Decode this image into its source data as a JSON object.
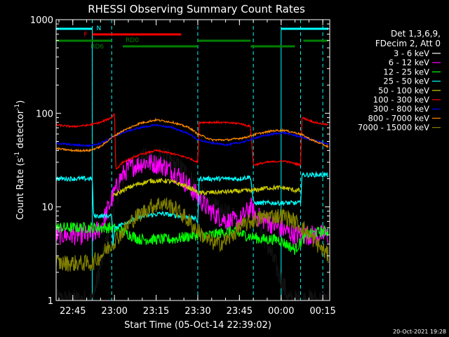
{
  "chart_data": {
    "type": "line",
    "title": "RHESSI Observing Summary Count Rates",
    "xlabel": "Start Time (05-Oct-14 22:39:02)",
    "ylabel_main": "Count Rate (s",
    "ylabel_sup1": "-1",
    "ylabel_mid": " detector",
    "ylabel_sup2": "-1",
    "ylabel_end": ")",
    "yscale": "log",
    "ylim": [
      1,
      1000
    ],
    "xlim_minutes": [
      0,
      98.5
    ],
    "x_ticks": [
      {
        "label": "22:45",
        "t": 6
      },
      {
        "label": "23:00",
        "t": 21
      },
      {
        "label": "23:15",
        "t": 36
      },
      {
        "label": "23:30",
        "t": 51
      },
      {
        "label": "23:45",
        "t": 66
      },
      {
        "label": "00:00",
        "t": 81
      },
      {
        "label": "00:15",
        "t": 96
      }
    ],
    "y_ticks": [
      {
        "label": "1",
        "v": 1
      },
      {
        "label": "10",
        "v": 10
      },
      {
        "label": "100",
        "v": 100
      },
      {
        "label": "1000",
        "v": 1000
      }
    ],
    "legend_title": [
      "Det 1,3,6,9,",
      "FDecim 2, Att 0"
    ],
    "legend_placement": "right",
    "series": [
      {
        "name": "3 - 6 keV",
        "color": "#000000",
        "points": [
          [
            0,
            1
          ],
          [
            13,
            1
          ],
          [
            17,
            3
          ],
          [
            20,
            8
          ],
          [
            22,
            14
          ],
          [
            24,
            20
          ],
          [
            28,
            30
          ],
          [
            34,
            34
          ],
          [
            40,
            32
          ],
          [
            46,
            24
          ],
          [
            50,
            17
          ],
          [
            54,
            12
          ],
          [
            58,
            9
          ],
          [
            62,
            8
          ],
          [
            66,
            8
          ],
          [
            70,
            9
          ],
          [
            72,
            8
          ],
          [
            80,
            2
          ],
          [
            84,
            1
          ],
          [
            90,
            1
          ],
          [
            98,
            1
          ]
        ]
      },
      {
        "name": "6 - 12 keV",
        "color": "#ff00ff",
        "points": [
          [
            0,
            5
          ],
          [
            13,
            5
          ],
          [
            16,
            6
          ],
          [
            20,
            12
          ],
          [
            23,
            20
          ],
          [
            26,
            26
          ],
          [
            32,
            30
          ],
          [
            38,
            28
          ],
          [
            44,
            22
          ],
          [
            50,
            14
          ],
          [
            54,
            10
          ],
          [
            58,
            8
          ],
          [
            62,
            7
          ],
          [
            66,
            7
          ],
          [
            70,
            10
          ],
          [
            72,
            8
          ],
          [
            80,
            6
          ],
          [
            86,
            5
          ],
          [
            92,
            5
          ],
          [
            98,
            5
          ]
        ]
      },
      {
        "name": "12 - 25 keV",
        "color": "#00ff00",
        "points": [
          [
            0,
            6
          ],
          [
            13,
            6
          ],
          [
            20,
            6
          ],
          [
            24,
            5.5
          ],
          [
            30,
            4.5
          ],
          [
            36,
            4.5
          ],
          [
            42,
            4.5
          ],
          [
            50,
            5
          ],
          [
            56,
            5
          ],
          [
            62,
            5.5
          ],
          [
            68,
            5
          ],
          [
            74,
            4.5
          ],
          [
            80,
            4.5
          ],
          [
            86,
            3.5
          ],
          [
            90,
            5
          ],
          [
            96,
            5.5
          ],
          [
            98,
            5.5
          ]
        ]
      },
      {
        "name": "25 - 50 keV",
        "color": "#00ffff",
        "points": [
          [
            0,
            20
          ],
          [
            13,
            20
          ],
          [
            13.5,
            8
          ],
          [
            20,
            8
          ],
          [
            20.5,
            4
          ],
          [
            21,
            6
          ],
          [
            26,
            7
          ],
          [
            32,
            8
          ],
          [
            38,
            8.5
          ],
          [
            44,
            8
          ],
          [
            50,
            7.5
          ],
          [
            51,
            7
          ],
          [
            51.5,
            20
          ],
          [
            58,
            20
          ],
          [
            66,
            20
          ],
          [
            70,
            21
          ],
          [
            71,
            11
          ],
          [
            78,
            11
          ],
          [
            86,
            11
          ],
          [
            88,
            11
          ],
          [
            88.5,
            22
          ],
          [
            98,
            22
          ]
        ]
      },
      {
        "name": "50 - 100 keV",
        "color": "#cccc00",
        "points": [
          [
            20.5,
            13
          ],
          [
            24,
            15
          ],
          [
            28,
            17
          ],
          [
            34,
            19
          ],
          [
            40,
            19
          ],
          [
            46,
            17
          ],
          [
            50,
            15
          ],
          [
            51,
            14
          ],
          [
            71,
            15
          ],
          [
            76,
            16
          ],
          [
            82,
            16
          ],
          [
            86,
            15
          ],
          [
            88,
            15
          ]
        ]
      },
      {
        "name": "100 - 300 keV",
        "color": "#ff0000",
        "points": [
          [
            0,
            75
          ],
          [
            6,
            72
          ],
          [
            12,
            75
          ],
          [
            16,
            80
          ],
          [
            20,
            90
          ],
          [
            21,
            100
          ],
          [
            21.5,
            25
          ],
          [
            24,
            30
          ],
          [
            30,
            36
          ],
          [
            36,
            40
          ],
          [
            42,
            37
          ],
          [
            48,
            33
          ],
          [
            51,
            30
          ],
          [
            51.5,
            80
          ],
          [
            58,
            80
          ],
          [
            66,
            78
          ],
          [
            70,
            72
          ],
          [
            71,
            28
          ],
          [
            76,
            30
          ],
          [
            82,
            31
          ],
          [
            86,
            29
          ],
          [
            88,
            28
          ],
          [
            88.5,
            90
          ],
          [
            93,
            80
          ],
          [
            98,
            75
          ]
        ]
      },
      {
        "name": "300 - 800 keV",
        "color": "#0000ff",
        "points": [
          [
            0,
            48
          ],
          [
            6,
            46
          ],
          [
            12,
            45
          ],
          [
            16,
            48
          ],
          [
            20,
            55
          ],
          [
            24,
            62
          ],
          [
            30,
            70
          ],
          [
            36,
            75
          ],
          [
            42,
            70
          ],
          [
            48,
            60
          ],
          [
            51,
            52
          ],
          [
            56,
            48
          ],
          [
            62,
            46
          ],
          [
            68,
            50
          ],
          [
            72,
            55
          ],
          [
            78,
            60
          ],
          [
            82,
            62
          ],
          [
            86,
            58
          ],
          [
            88,
            56
          ],
          [
            92,
            52
          ],
          [
            98,
            47
          ]
        ]
      },
      {
        "name": "800 - 7000 keV",
        "color": "#ff8800",
        "points": [
          [
            0,
            42
          ],
          [
            6,
            40
          ],
          [
            12,
            40
          ],
          [
            16,
            44
          ],
          [
            20,
            55
          ],
          [
            24,
            65
          ],
          [
            30,
            78
          ],
          [
            36,
            85
          ],
          [
            42,
            80
          ],
          [
            48,
            70
          ],
          [
            51,
            60
          ],
          [
            56,
            52
          ],
          [
            62,
            52
          ],
          [
            68,
            55
          ],
          [
            72,
            60
          ],
          [
            78,
            65
          ],
          [
            82,
            66
          ],
          [
            86,
            62
          ],
          [
            88,
            60
          ],
          [
            92,
            52
          ],
          [
            98,
            44
          ]
        ]
      },
      {
        "name": "7000 - 15000 keV",
        "color": "#808000",
        "points": [
          [
            0,
            2.5
          ],
          [
            6,
            2.5
          ],
          [
            13,
            2.5
          ],
          [
            16,
            3
          ],
          [
            20,
            4
          ],
          [
            24,
            5.5
          ],
          [
            28,
            7.5
          ],
          [
            34,
            10
          ],
          [
            38,
            11
          ],
          [
            42,
            10
          ],
          [
            46,
            8
          ],
          [
            50,
            6
          ],
          [
            54,
            4.5
          ],
          [
            58,
            4
          ],
          [
            62,
            4.5
          ],
          [
            66,
            6
          ],
          [
            70,
            7
          ],
          [
            76,
            8
          ],
          [
            82,
            8
          ],
          [
            86,
            7
          ],
          [
            90,
            5.5
          ],
          [
            94,
            4
          ],
          [
            98,
            3
          ]
        ]
      }
    ],
    "annotations": {
      "bars": [
        {
          "label": "N",
          "color": "#00ffff",
          "segments": [
            [
              0,
              13
            ],
            [
              81,
              98
            ]
          ],
          "row": 0
        },
        {
          "label": "F",
          "color": "#ff0000",
          "segments": [
            [
              13,
              45
            ]
          ],
          "row": 1
        },
        {
          "label": "RD0",
          "color": "#008000",
          "segments": [
            [
              0,
              20
            ],
            [
              51,
              70
            ],
            [
              89,
              98
            ]
          ],
          "row": 2
        },
        {
          "label": "RD6",
          "color": "#008000",
          "segments": [
            [
              24,
              51
            ],
            [
              70,
              86
            ]
          ],
          "row": 3
        }
      ],
      "vlines_solid": [
        13,
        81
      ],
      "vlines_dashed": [
        13,
        20,
        51,
        71,
        88,
        96
      ]
    },
    "timestamp": "20-Oct-2021 19:28"
  }
}
